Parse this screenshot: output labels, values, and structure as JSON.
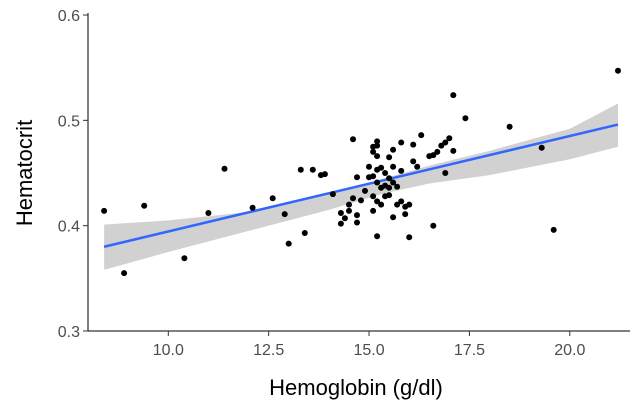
{
  "chart_data": {
    "type": "scatter",
    "title": "",
    "xlabel": "Hemoglobin (g/dl)",
    "ylabel": "Hematocrit",
    "xlim": [
      8.0,
      21.5
    ],
    "ylim": [
      0.3,
      0.6
    ],
    "x_ticks": [
      {
        "value": 10.0,
        "label": "10.0"
      },
      {
        "value": 12.5,
        "label": "12.5"
      },
      {
        "value": 15.0,
        "label": "15.0"
      },
      {
        "value": 17.5,
        "label": "17.5"
      },
      {
        "value": 20.0,
        "label": "20.0"
      }
    ],
    "y_ticks": [
      {
        "value": 0.3,
        "label": "0.3"
      },
      {
        "value": 0.4,
        "label": "0.4"
      },
      {
        "value": 0.5,
        "label": "0.5"
      },
      {
        "value": 0.6,
        "label": "0.6"
      }
    ],
    "grid": false,
    "legend": "none",
    "colors": {
      "points": "#000000",
      "fit_line": "#3366ff",
      "confidence_band": "#cccccc",
      "axis": "#000000"
    },
    "points": [
      [
        8.4,
        0.414
      ],
      [
        8.9,
        0.355
      ],
      [
        9.4,
        0.419
      ],
      [
        10.4,
        0.369
      ],
      [
        11.0,
        0.412
      ],
      [
        11.4,
        0.454
      ],
      [
        12.1,
        0.417
      ],
      [
        12.6,
        0.426
      ],
      [
        12.9,
        0.411
      ],
      [
        13.0,
        0.383
      ],
      [
        13.3,
        0.453
      ],
      [
        13.4,
        0.393
      ],
      [
        13.6,
        0.453
      ],
      [
        13.8,
        0.448
      ],
      [
        13.9,
        0.449
      ],
      [
        14.1,
        0.43
      ],
      [
        14.3,
        0.412
      ],
      [
        14.3,
        0.402
      ],
      [
        14.4,
        0.407
      ],
      [
        14.5,
        0.414
      ],
      [
        14.5,
        0.42
      ],
      [
        14.6,
        0.482
      ],
      [
        14.6,
        0.426
      ],
      [
        14.7,
        0.41
      ],
      [
        14.7,
        0.446
      ],
      [
        14.7,
        0.403
      ],
      [
        14.8,
        0.424
      ],
      [
        14.9,
        0.433
      ],
      [
        15.0,
        0.446
      ],
      [
        15.0,
        0.456
      ],
      [
        15.1,
        0.475
      ],
      [
        15.1,
        0.47
      ],
      [
        15.1,
        0.447
      ],
      [
        15.1,
        0.428
      ],
      [
        15.1,
        0.414
      ],
      [
        15.2,
        0.466
      ],
      [
        15.2,
        0.476
      ],
      [
        15.2,
        0.48
      ],
      [
        15.2,
        0.453
      ],
      [
        15.2,
        0.441
      ],
      [
        15.2,
        0.423
      ],
      [
        15.2,
        0.39
      ],
      [
        15.3,
        0.455
      ],
      [
        15.3,
        0.436
      ],
      [
        15.3,
        0.42
      ],
      [
        15.4,
        0.45
      ],
      [
        15.4,
        0.438
      ],
      [
        15.4,
        0.428
      ],
      [
        15.5,
        0.465
      ],
      [
        15.5,
        0.445
      ],
      [
        15.5,
        0.436
      ],
      [
        15.5,
        0.429
      ],
      [
        15.6,
        0.472
      ],
      [
        15.6,
        0.456
      ],
      [
        15.6,
        0.441
      ],
      [
        15.6,
        0.408
      ],
      [
        15.7,
        0.437
      ],
      [
        15.7,
        0.42
      ],
      [
        15.8,
        0.479
      ],
      [
        15.8,
        0.452
      ],
      [
        15.8,
        0.423
      ],
      [
        15.9,
        0.418
      ],
      [
        15.9,
        0.411
      ],
      [
        16.0,
        0.389
      ],
      [
        16.0,
        0.42
      ],
      [
        16.1,
        0.461
      ],
      [
        16.1,
        0.477
      ],
      [
        16.2,
        0.456
      ],
      [
        16.3,
        0.486
      ],
      [
        16.5,
        0.466
      ],
      [
        16.6,
        0.4
      ],
      [
        16.6,
        0.467
      ],
      [
        16.7,
        0.47
      ],
      [
        16.8,
        0.476
      ],
      [
        16.9,
        0.45
      ],
      [
        16.9,
        0.479
      ],
      [
        17.0,
        0.483
      ],
      [
        17.1,
        0.524
      ],
      [
        17.1,
        0.471
      ],
      [
        17.4,
        0.502
      ],
      [
        18.5,
        0.494
      ],
      [
        19.3,
        0.474
      ],
      [
        19.6,
        0.396
      ],
      [
        21.2,
        0.547
      ]
    ],
    "fit_line": [
      [
        8.4,
        0.38
      ],
      [
        21.2,
        0.496
      ]
    ],
    "confidence_band": {
      "upper": [
        [
          8.4,
          0.401
        ],
        [
          10.0,
          0.405
        ],
        [
          12.0,
          0.413
        ],
        [
          14.0,
          0.43
        ],
        [
          15.3,
          0.444
        ],
        [
          16.5,
          0.457
        ],
        [
          18.0,
          0.471
        ],
        [
          20.0,
          0.492
        ],
        [
          21.2,
          0.516
        ]
      ],
      "lower": [
        [
          8.4,
          0.358
        ],
        [
          10.0,
          0.375
        ],
        [
          12.0,
          0.395
        ],
        [
          14.0,
          0.415
        ],
        [
          15.3,
          0.43
        ],
        [
          16.5,
          0.44
        ],
        [
          18.0,
          0.448
        ],
        [
          20.0,
          0.463
        ],
        [
          21.2,
          0.475
        ]
      ]
    }
  }
}
